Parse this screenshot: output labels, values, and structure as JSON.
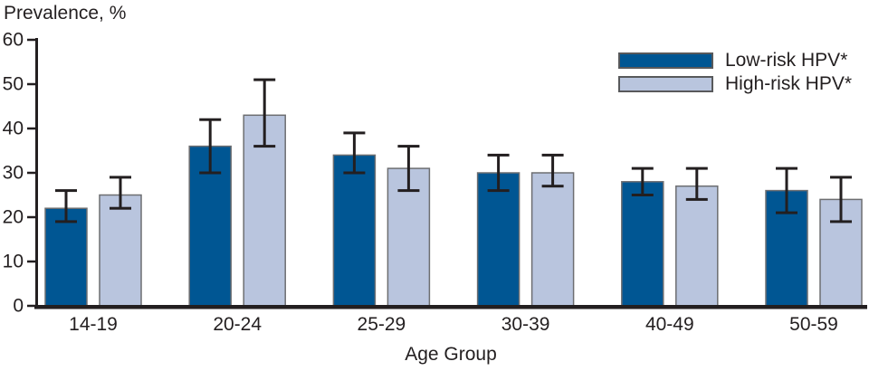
{
  "title": "Prevalence, %",
  "chart_data": {
    "type": "bar",
    "title": "Prevalence, %",
    "xlabel": "Age Group",
    "ylabel": "Prevalence, %",
    "ylim": [
      0,
      60
    ],
    "yticks": [
      0,
      10,
      20,
      30,
      40,
      50,
      60
    ],
    "grid": false,
    "error_bars": true,
    "legend_position": "top-right",
    "categories": [
      "14-19",
      "20-24",
      "25-29",
      "30-39",
      "40-49",
      "50-59"
    ],
    "series": [
      {
        "name": "Low-risk HPV*",
        "color": "#005693",
        "values": [
          22,
          36,
          34,
          30,
          28,
          26
        ],
        "ci_low": [
          19,
          30,
          30,
          26,
          25,
          21
        ],
        "ci_high": [
          26,
          42,
          39,
          34,
          31,
          31
        ]
      },
      {
        "name": "High-risk HPV*",
        "color": "#b9c5de",
        "values": [
          25,
          43,
          31,
          30,
          27,
          24
        ],
        "ci_low": [
          22,
          36,
          26,
          27,
          24,
          19
        ],
        "ci_high": [
          29,
          51,
          36,
          34,
          31,
          29
        ]
      }
    ]
  },
  "colors": {
    "ink": "#231f20",
    "bar_border": "#6d6e71",
    "legend_swatch_border": "#58595b",
    "background": "#ffffff"
  }
}
